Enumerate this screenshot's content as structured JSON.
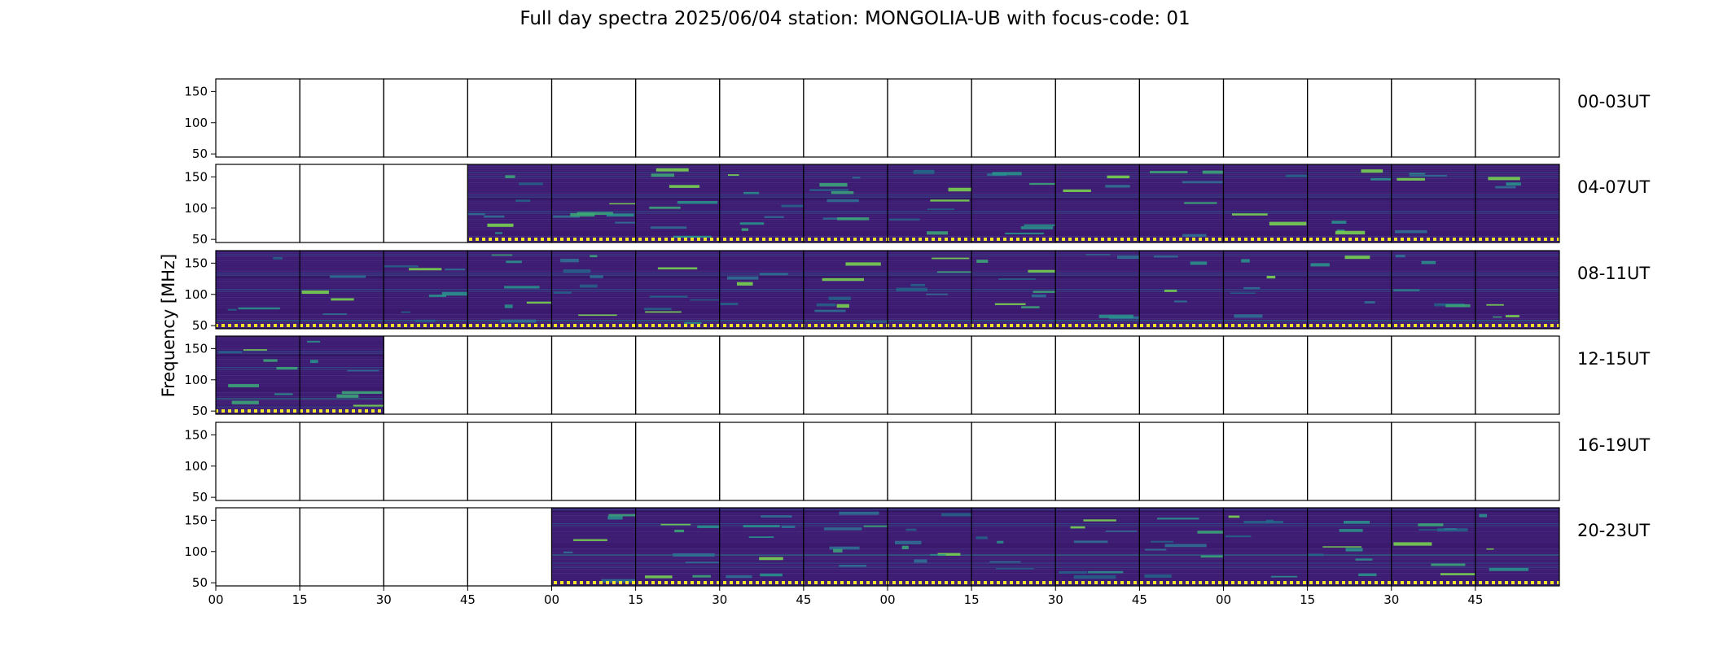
{
  "title": "Full day spectra 2025/06/04 station: MONGOLIA-UB with focus-code: 01",
  "chart_data": {
    "type": "heatmap",
    "ylabel": "Frequency [MHz]",
    "xlabel": "",
    "y_ticks": [
      "150",
      "100",
      "50"
    ],
    "x_tick_labels": [
      "00",
      "15",
      "30",
      "45",
      "00",
      "15",
      "30",
      "45",
      "00",
      "15",
      "30",
      "45",
      "00",
      "15",
      "30",
      "45"
    ],
    "colormap": "viridis",
    "rows": [
      {
        "label": "00-03UT",
        "panels_with_data": []
      },
      {
        "label": "04-07UT",
        "panels_with_data": [
          3,
          4,
          5,
          6,
          7,
          8,
          9,
          10,
          11,
          12,
          13,
          14,
          15
        ]
      },
      {
        "label": "08-11UT",
        "panels_with_data": [
          0,
          1,
          2,
          3,
          4,
          5,
          6,
          7,
          8,
          9,
          10,
          11,
          12,
          13,
          14,
          15
        ]
      },
      {
        "label": "12-15UT",
        "panels_with_data": [
          0,
          1
        ]
      },
      {
        "label": "16-19UT",
        "panels_with_data": []
      },
      {
        "label": "20-23UT",
        "panels_with_data": [
          4,
          5,
          6,
          7,
          8,
          9,
          10,
          11,
          12,
          13,
          14,
          15
        ]
      }
    ]
  }
}
